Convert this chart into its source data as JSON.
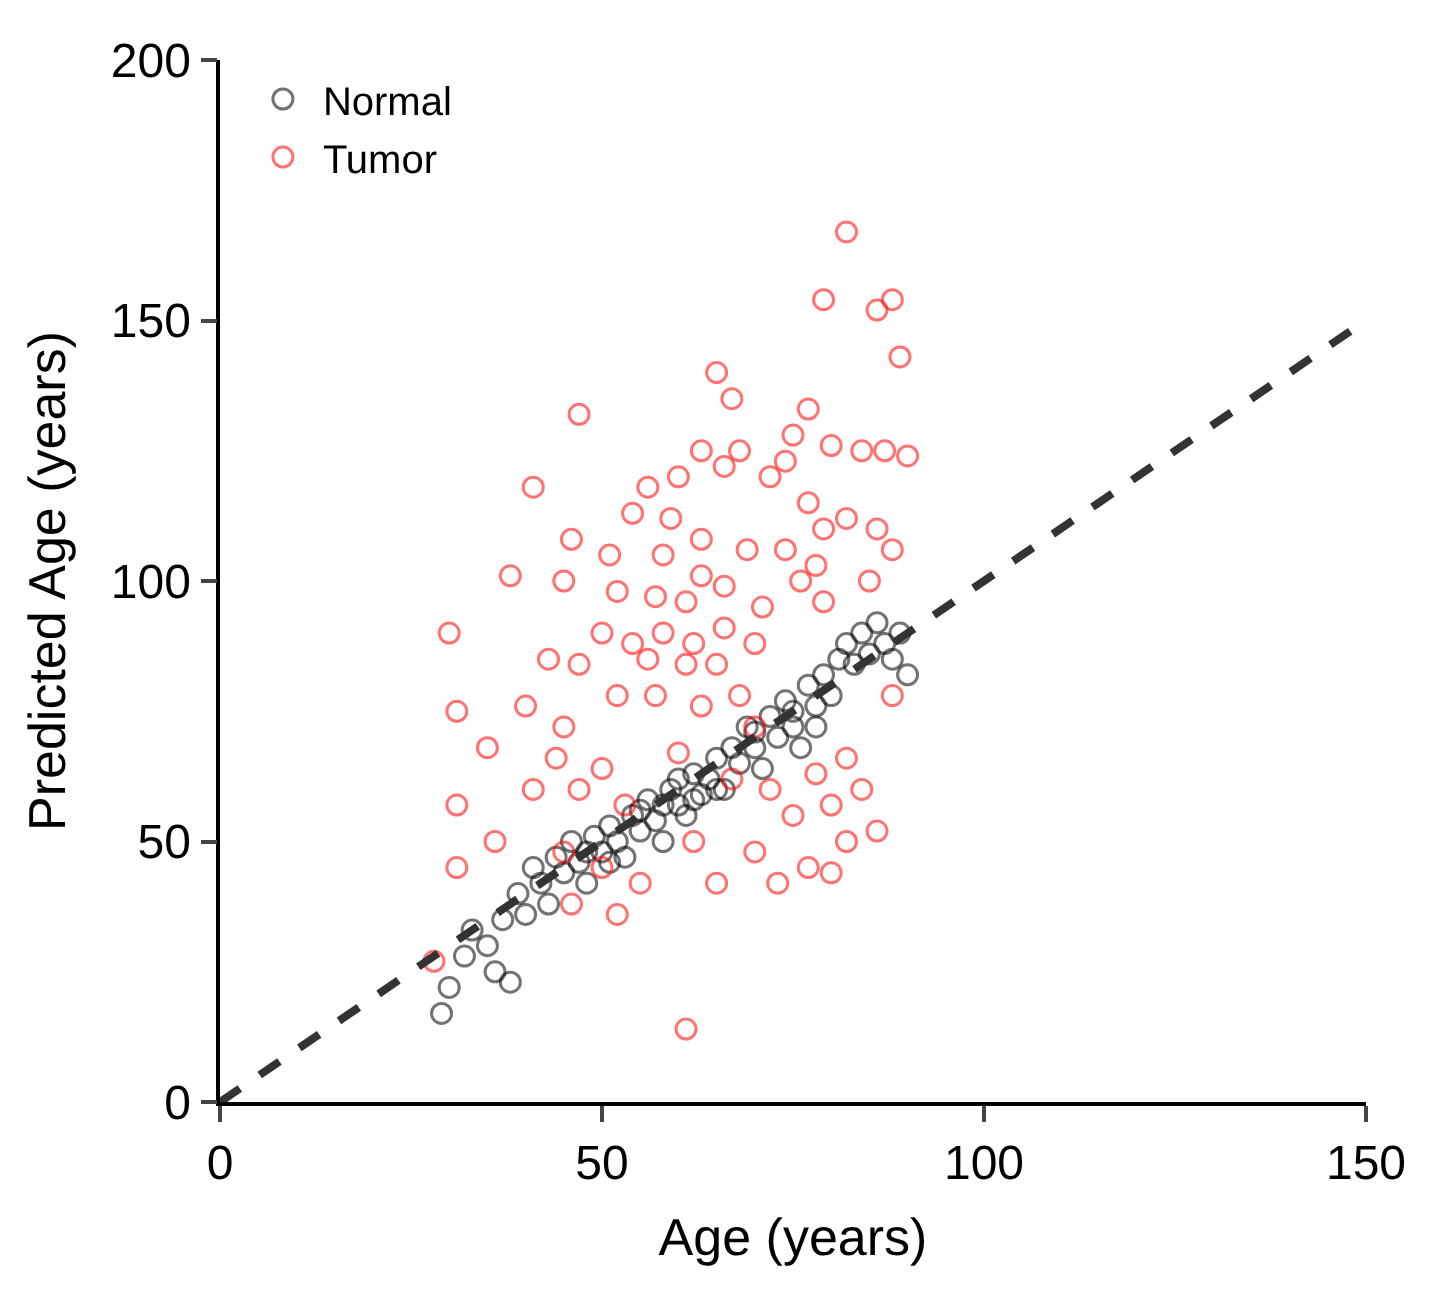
{
  "chart_data": {
    "type": "scatter",
    "xlabel": "Age (years)",
    "ylabel": "Predicted Age (years)",
    "xlim": [
      0,
      150
    ],
    "xticks": [
      0,
      50,
      100,
      150
    ],
    "ylim": [
      0,
      200
    ],
    "yticks": [
      0,
      50,
      100,
      150,
      200
    ],
    "legend": "top left",
    "series": [
      {
        "name": "Normal",
        "color": "#000000",
        "marker": "circle",
        "x": [
          29,
          30,
          32,
          33,
          35,
          36,
          37,
          38,
          39,
          40,
          41,
          42,
          43,
          44,
          45,
          46,
          47,
          48,
          49,
          50,
          51,
          52,
          53,
          54,
          55,
          56,
          57,
          58,
          59,
          60,
          61,
          62,
          63,
          64,
          65,
          66,
          67,
          68,
          69,
          70,
          71,
          72,
          73,
          74,
          75,
          76,
          77,
          78,
          79,
          80,
          81,
          82,
          83,
          84,
          85,
          86,
          87,
          88,
          89,
          90,
          60,
          58,
          55,
          65,
          70,
          75,
          51,
          48,
          62,
          78
        ],
        "values": [
          17,
          22,
          28,
          33,
          30,
          25,
          35,
          23,
          40,
          36,
          45,
          42,
          38,
          47,
          44,
          50,
          46,
          42,
          51,
          48,
          53,
          50,
          47,
          55,
          52,
          58,
          54,
          50,
          60,
          57,
          55,
          63,
          59,
          62,
          66,
          60,
          68,
          65,
          72,
          68,
          64,
          74,
          70,
          77,
          72,
          68,
          80,
          76,
          82,
          78,
          85,
          88,
          84,
          90,
          86,
          92,
          88,
          85,
          90,
          82,
          62,
          57,
          56,
          60,
          71,
          75,
          46,
          48,
          58,
          72
        ]
      },
      {
        "name": "Tumor",
        "color": "#ff0000",
        "marker": "circle",
        "x": [
          82,
          79,
          86,
          88,
          89,
          65,
          67,
          47,
          77,
          63,
          68,
          74,
          75,
          80,
          84,
          87,
          90,
          41,
          56,
          60,
          66,
          72,
          54,
          59,
          77,
          79,
          82,
          86,
          46,
          51,
          58,
          63,
          69,
          74,
          78,
          85,
          88,
          38,
          45,
          52,
          57,
          61,
          63,
          66,
          71,
          76,
          79,
          30,
          50,
          54,
          58,
          62,
          66,
          70,
          43,
          47,
          56,
          61,
          65,
          31,
          40,
          45,
          52,
          57,
          63,
          68,
          35,
          44,
          50,
          67,
          72,
          78,
          82,
          31,
          41,
          53,
          75,
          80,
          84,
          36,
          62,
          70,
          77,
          82,
          86,
          31,
          45,
          50,
          55,
          65,
          73,
          80,
          46,
          52,
          28,
          61,
          47,
          60,
          70,
          88
        ],
        "values": [
          167,
          154,
          152,
          154,
          143,
          140,
          135,
          132,
          133,
          125,
          125,
          123,
          128,
          126,
          125,
          125,
          124,
          118,
          118,
          120,
          122,
          120,
          113,
          112,
          115,
          110,
          112,
          110,
          108,
          105,
          105,
          108,
          106,
          106,
          103,
          100,
          106,
          101,
          100,
          98,
          97,
          96,
          101,
          99,
          95,
          100,
          96,
          90,
          90,
          88,
          90,
          88,
          91,
          88,
          85,
          84,
          85,
          84,
          84,
          75,
          76,
          72,
          78,
          78,
          76,
          78,
          68,
          66,
          64,
          62,
          60,
          63,
          66,
          57,
          60,
          57,
          55,
          57,
          60,
          50,
          50,
          48,
          45,
          50,
          52,
          45,
          48,
          45,
          42,
          42,
          42,
          44,
          38,
          36,
          27,
          14,
          60,
          67,
          72,
          78
        ]
      },
      {
        "type": "line",
        "marker": "none",
        "line_style": "dashed",
        "color": "#333333",
        "x": [
          0,
          150
        ],
        "values": [
          0,
          150
        ]
      }
    ]
  }
}
